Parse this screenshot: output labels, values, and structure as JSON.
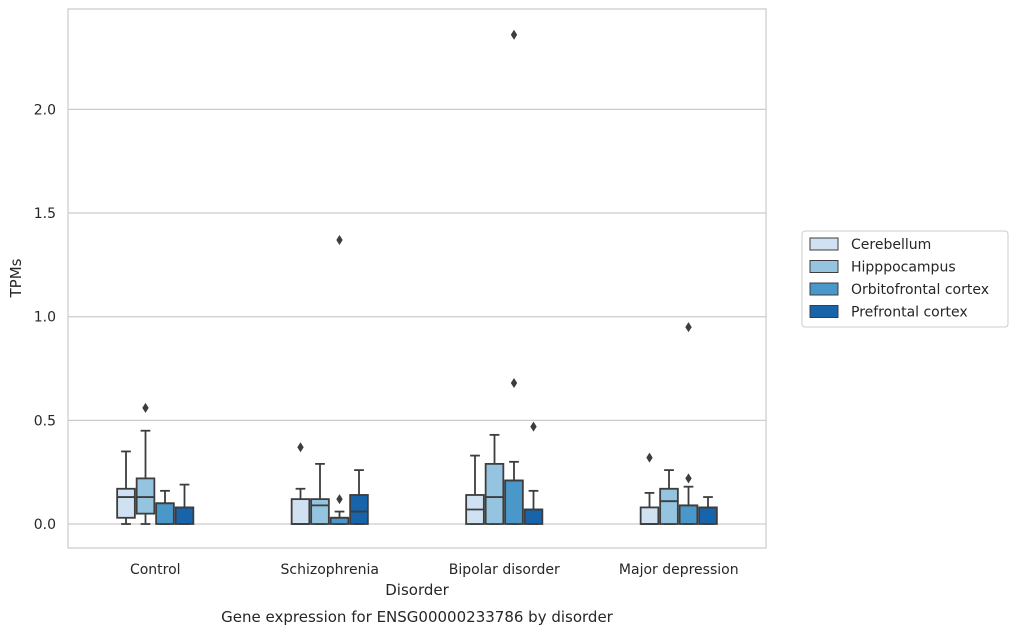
{
  "chart_data": {
    "type": "box",
    "title": "",
    "caption": "Gene expression for ENSG00000233786 by disorder",
    "xlabel": "Disorder",
    "ylabel": "TPMs",
    "ylim": [
      -0.11,
      2.49
    ],
    "yticks": [
      0.0,
      0.5,
      1.0,
      1.5,
      2.0
    ],
    "ytick_labels": [
      "0.0",
      "0.5",
      "1.0",
      "1.5",
      "2.0"
    ],
    "grid": "horizontal",
    "legend_position": "right",
    "categories": [
      "Control",
      "Schizophrenia",
      "Bipolar disorder",
      "Major depression"
    ],
    "series": [
      {
        "name": "Cerebellum",
        "color": "#d0e1f2",
        "boxes": [
          {
            "q1": 0.03,
            "median": 0.13,
            "q3": 0.17,
            "whisker_low": 0.0,
            "whisker_high": 0.35,
            "outliers": []
          },
          {
            "q1": 0.0,
            "median": 0.0,
            "q3": 0.12,
            "whisker_low": 0.0,
            "whisker_high": 0.17,
            "outliers": [
              0.37
            ]
          },
          {
            "q1": 0.0,
            "median": 0.07,
            "q3": 0.14,
            "whisker_low": 0.0,
            "whisker_high": 0.33,
            "outliers": []
          },
          {
            "q1": 0.0,
            "median": 0.0,
            "q3": 0.08,
            "whisker_low": 0.0,
            "whisker_high": 0.15,
            "outliers": [
              0.32
            ]
          }
        ]
      },
      {
        "name": "Hipppocampus",
        "color": "#94c4df",
        "boxes": [
          {
            "q1": 0.05,
            "median": 0.13,
            "q3": 0.22,
            "whisker_low": 0.0,
            "whisker_high": 0.45,
            "outliers": [
              0.56
            ]
          },
          {
            "q1": 0.0,
            "median": 0.09,
            "q3": 0.12,
            "whisker_low": 0.0,
            "whisker_high": 0.29,
            "outliers": []
          },
          {
            "q1": 0.0,
            "median": 0.13,
            "q3": 0.29,
            "whisker_low": 0.0,
            "whisker_high": 0.43,
            "outliers": []
          },
          {
            "q1": 0.0,
            "median": 0.11,
            "q3": 0.17,
            "whisker_low": 0.0,
            "whisker_high": 0.26,
            "outliers": []
          }
        ]
      },
      {
        "name": "Orbitofrontal cortex",
        "color": "#4a98c9",
        "boxes": [
          {
            "q1": 0.0,
            "median": 0.1,
            "q3": 0.1,
            "whisker_low": 0.0,
            "whisker_high": 0.16,
            "outliers": []
          },
          {
            "q1": 0.0,
            "median": 0.03,
            "q3": 0.03,
            "whisker_low": 0.0,
            "whisker_high": 0.06,
            "outliers": [
              0.12,
              1.37
            ]
          },
          {
            "q1": 0.0,
            "median": 0.21,
            "q3": 0.21,
            "whisker_low": 0.0,
            "whisker_high": 0.3,
            "outliers": [
              0.68,
              2.36
            ]
          },
          {
            "q1": 0.0,
            "median": 0.09,
            "q3": 0.09,
            "whisker_low": 0.0,
            "whisker_high": 0.18,
            "outliers": [
              0.22,
              0.95
            ]
          }
        ]
      },
      {
        "name": "Prefrontal cortex",
        "color": "#1764ab",
        "boxes": [
          {
            "q1": 0.0,
            "median": 0.08,
            "q3": 0.08,
            "whisker_low": 0.0,
            "whisker_high": 0.19,
            "outliers": []
          },
          {
            "q1": 0.0,
            "median": 0.06,
            "q3": 0.14,
            "whisker_low": 0.0,
            "whisker_high": 0.26,
            "outliers": []
          },
          {
            "q1": 0.0,
            "median": 0.07,
            "q3": 0.07,
            "whisker_low": 0.0,
            "whisker_high": 0.16,
            "outliers": [
              0.47
            ]
          },
          {
            "q1": 0.0,
            "median": 0.08,
            "q3": 0.08,
            "whisker_low": 0.0,
            "whisker_high": 0.13,
            "outliers": []
          }
        ]
      }
    ]
  }
}
